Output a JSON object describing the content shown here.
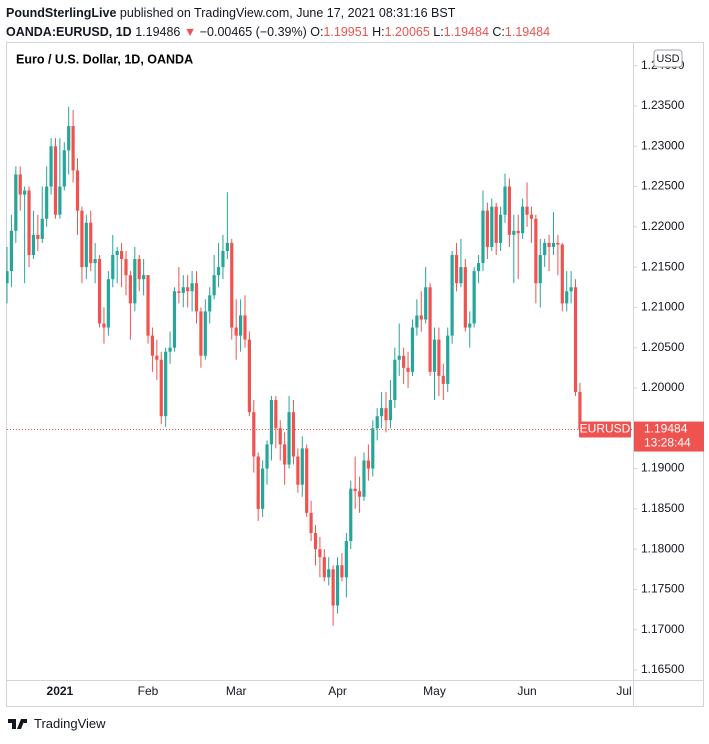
{
  "header": {
    "publisher": "PoundSterlingLive",
    "published": "published on TradingView.com, June 17, 2021 08:31:16 BST",
    "symbol": "OANDA:EURUSD, 1D",
    "last": "1.19486",
    "arrow": "▼",
    "change": "−0.00465 (−0.39%)",
    "ohlc": [
      {
        "key": "O:",
        "value": "1.19951"
      },
      {
        "key": "H:",
        "value": "1.20065"
      },
      {
        "key": "L:",
        "value": "1.19484"
      },
      {
        "key": "C:",
        "value": "1.19484"
      }
    ]
  },
  "footer": {
    "brand": "TradingView"
  },
  "chart_data": {
    "type": "candlestick",
    "legend": "Euro / U.S. Dollar, 1D, OANDA",
    "currency": "USD",
    "up_color": "#26a69a",
    "down_color": "#ef5350",
    "last_price": 1.19484,
    "last_symbol": "EURUSD",
    "countdown": "13:28:44",
    "ylim": [
      1.16376,
      1.24219
    ],
    "yticks": [
      {
        "value": 1.165,
        "label": "1.16500"
      },
      {
        "value": 1.17,
        "label": "1.17000"
      },
      {
        "value": 1.175,
        "label": "1.17500"
      },
      {
        "value": 1.18,
        "label": "1.18000"
      },
      {
        "value": 1.185,
        "label": "1.18500"
      },
      {
        "value": 1.19,
        "label": "1.19000"
      },
      {
        "value": 1.195,
        "label": "1.19500"
      },
      {
        "value": 1.2,
        "label": "1.20000"
      },
      {
        "value": 1.205,
        "label": "1.20500"
      },
      {
        "value": 1.21,
        "label": "1.21000"
      },
      {
        "value": 1.215,
        "label": "1.21500"
      },
      {
        "value": 1.22,
        "label": "1.22000"
      },
      {
        "value": 1.225,
        "label": "1.22500"
      },
      {
        "value": 1.23,
        "label": "1.23000"
      },
      {
        "value": 1.235,
        "label": "1.23500"
      },
      {
        "value": 1.24,
        "label": "1.24000"
      }
    ],
    "categories": [
      null,
      null,
      null,
      null,
      null,
      null,
      null,
      null,
      null,
      null,
      null,
      null,
      "2021",
      null,
      null,
      null,
      null,
      null,
      null,
      null,
      null,
      null,
      null,
      null,
      null,
      null,
      null,
      null,
      null,
      null,
      null,
      null,
      "Feb",
      null,
      null,
      null,
      null,
      null,
      null,
      null,
      null,
      null,
      null,
      null,
      null,
      null,
      null,
      null,
      null,
      null,
      null,
      null,
      "Mar",
      null,
      null,
      null,
      null,
      null,
      null,
      null,
      null,
      null,
      null,
      null,
      null,
      null,
      null,
      null,
      null,
      null,
      null,
      null,
      null,
      null,
      null,
      "Apr",
      null,
      null,
      null,
      null,
      null,
      null,
      null,
      null,
      null,
      null,
      null,
      null,
      null,
      null,
      null,
      null,
      null,
      null,
      null,
      null,
      null,
      "May",
      null,
      null,
      null,
      null,
      null,
      null,
      null,
      null,
      null,
      null,
      null,
      null,
      null,
      null,
      null,
      null,
      null,
      null,
      null,
      null,
      "Jun",
      null,
      null,
      null,
      null,
      null,
      null,
      null,
      null,
      null,
      null,
      null,
      null,
      null,
      null,
      null,
      null,
      null,
      null,
      null,
      null,
      null,
      "Jul"
    ],
    "values": [
      [
        1.213,
        1.2175,
        1.2105,
        1.2145
      ],
      [
        1.2145,
        1.2215,
        1.2125,
        1.2195
      ],
      [
        1.2195,
        1.2275,
        1.218,
        1.2265
      ],
      [
        1.2265,
        1.2275,
        1.222,
        1.224
      ],
      [
        1.224,
        1.225,
        1.213,
        1.2245
      ],
      [
        1.2245,
        1.225,
        1.215,
        1.2165
      ],
      [
        1.2165,
        1.222,
        1.216,
        1.219
      ],
      [
        1.219,
        1.2215,
        1.217,
        1.2185
      ],
      [
        1.2185,
        1.225,
        1.218,
        1.221
      ],
      [
        1.221,
        1.2275,
        1.22,
        1.225
      ],
      [
        1.225,
        1.231,
        1.224,
        1.23
      ],
      [
        1.23,
        1.231,
        1.221,
        1.2215
      ],
      [
        1.2215,
        1.231,
        1.221,
        1.225
      ],
      [
        1.225,
        1.2305,
        1.2245,
        1.2295
      ],
      [
        1.2295,
        1.2349,
        1.2265,
        1.2325
      ],
      [
        1.2325,
        1.2345,
        1.2255,
        1.227
      ],
      [
        1.227,
        1.2285,
        1.219,
        1.222
      ],
      [
        1.222,
        1.2225,
        1.213,
        1.215
      ],
      [
        1.215,
        1.2215,
        1.2135,
        1.2205
      ],
      [
        1.2205,
        1.222,
        1.2145,
        1.2155
      ],
      [
        1.2155,
        1.218,
        1.213,
        1.216
      ],
      [
        1.216,
        1.2165,
        1.2075,
        1.208
      ],
      [
        1.208,
        1.21,
        1.2055,
        1.2075
      ],
      [
        1.2075,
        1.2145,
        1.2065,
        1.2135
      ],
      [
        1.2135,
        1.219,
        1.2125,
        1.2165
      ],
      [
        1.2165,
        1.2175,
        1.213,
        1.217
      ],
      [
        1.217,
        1.218,
        1.2125,
        1.216
      ],
      [
        1.216,
        1.217,
        1.2115,
        1.214
      ],
      [
        1.214,
        1.2145,
        1.206,
        1.2105
      ],
      [
        1.2105,
        1.2175,
        1.2095,
        1.216
      ],
      [
        1.216,
        1.2165,
        1.212,
        1.2135
      ],
      [
        1.2135,
        1.216,
        1.2115,
        1.214
      ],
      [
        1.214,
        1.214,
        1.2055,
        1.2065
      ],
      [
        1.2065,
        1.2075,
        1.202,
        1.204
      ],
      [
        1.204,
        1.206,
        1.201,
        1.2035
      ],
      [
        1.2035,
        1.2045,
        1.1955,
        1.1965
      ],
      [
        1.1965,
        1.205,
        1.1952,
        1.2045
      ],
      [
        1.2045,
        1.207,
        1.203,
        1.205
      ],
      [
        1.205,
        1.2125,
        1.2045,
        1.212
      ],
      [
        1.212,
        1.215,
        1.2105,
        1.2118
      ],
      [
        1.2118,
        1.214,
        1.21,
        1.2125
      ],
      [
        1.2125,
        1.214,
        1.21,
        1.212
      ],
      [
        1.212,
        1.2145,
        1.2095,
        1.213
      ],
      [
        1.213,
        1.2145,
        1.208,
        1.2095
      ],
      [
        1.2095,
        1.21,
        1.2025,
        1.204
      ],
      [
        1.204,
        1.211,
        1.2035,
        1.2095
      ],
      [
        1.2095,
        1.2125,
        1.208,
        1.2115
      ],
      [
        1.2115,
        1.2165,
        1.211,
        1.214
      ],
      [
        1.214,
        1.218,
        1.2125,
        1.215
      ],
      [
        1.215,
        1.219,
        1.2135,
        1.217
      ],
      [
        1.217,
        1.2243,
        1.216,
        1.218
      ],
      [
        1.218,
        1.2185,
        1.206,
        1.2075
      ],
      [
        1.2075,
        1.211,
        1.2035,
        1.2065
      ],
      [
        1.2065,
        1.211,
        1.2045,
        1.209
      ],
      [
        1.209,
        1.2115,
        1.205,
        1.206
      ],
      [
        1.206,
        1.207,
        1.1965,
        1.197
      ],
      [
        1.197,
        1.1985,
        1.1895,
        1.1915
      ],
      [
        1.1915,
        1.192,
        1.1835,
        1.185
      ],
      [
        1.185,
        1.191,
        1.184,
        1.19
      ],
      [
        1.19,
        1.1935,
        1.188,
        1.193
      ],
      [
        1.193,
        1.199,
        1.191,
        1.1985
      ],
      [
        1.1985,
        1.199,
        1.1925,
        1.195
      ],
      [
        1.195,
        1.196,
        1.191,
        1.193
      ],
      [
        1.193,
        1.1945,
        1.188,
        1.1905
      ],
      [
        1.1905,
        1.199,
        1.19,
        1.197
      ],
      [
        1.197,
        1.1985,
        1.1905,
        1.1915
      ],
      [
        1.1915,
        1.1925,
        1.187,
        1.188
      ],
      [
        1.188,
        1.194,
        1.1865,
        1.1925
      ],
      [
        1.1925,
        1.193,
        1.184,
        1.1845
      ],
      [
        1.1845,
        1.186,
        1.181,
        1.182
      ],
      [
        1.182,
        1.183,
        1.178,
        1.18
      ],
      [
        1.18,
        1.1815,
        1.1765,
        1.179
      ],
      [
        1.179,
        1.18,
        1.176,
        1.1765
      ],
      [
        1.1765,
        1.179,
        1.1755,
        1.1775
      ],
      [
        1.1775,
        1.178,
        1.1705,
        1.173
      ],
      [
        1.173,
        1.179,
        1.172,
        1.178
      ],
      [
        1.178,
        1.1795,
        1.176,
        1.1765
      ],
      [
        1.1765,
        1.182,
        1.174,
        1.181
      ],
      [
        1.181,
        1.1885,
        1.18,
        1.1875
      ],
      [
        1.1875,
        1.1915,
        1.185,
        1.1872
      ],
      [
        1.1872,
        1.189,
        1.1845,
        1.1865
      ],
      [
        1.1865,
        1.192,
        1.186,
        1.191
      ],
      [
        1.191,
        1.193,
        1.1885,
        1.19
      ],
      [
        1.19,
        1.196,
        1.189,
        1.195
      ],
      [
        1.195,
        1.1975,
        1.1935,
        1.1965
      ],
      [
        1.1965,
        1.1995,
        1.195,
        1.1975
      ],
      [
        1.1975,
        1.1995,
        1.1945,
        1.196
      ],
      [
        1.196,
        1.201,
        1.195,
        1.1985
      ],
      [
        1.1985,
        1.205,
        1.1975,
        1.2035
      ],
      [
        1.2035,
        1.208,
        1.2015,
        1.204
      ],
      [
        1.204,
        1.205,
        1.2005,
        1.2025
      ],
      [
        1.2025,
        1.2045,
        1.2,
        1.202
      ],
      [
        1.202,
        1.2085,
        1.2015,
        1.2075
      ],
      [
        1.2075,
        1.211,
        1.2065,
        1.209
      ],
      [
        1.209,
        1.212,
        1.207,
        1.2085
      ],
      [
        1.2085,
        1.215,
        1.208,
        1.2125
      ],
      [
        1.2125,
        1.213,
        1.2015,
        1.202
      ],
      [
        1.202,
        1.2075,
        1.1985,
        1.206
      ],
      [
        1.206,
        1.2075,
        1.199,
        1.2015
      ],
      [
        1.2015,
        1.203,
        1.1985,
        1.2005
      ],
      [
        1.2005,
        1.2075,
        1.1995,
        1.2065
      ],
      [
        1.2065,
        1.217,
        1.2055,
        1.2165
      ],
      [
        1.2165,
        1.218,
        1.212,
        1.213
      ],
      [
        1.213,
        1.2185,
        1.2125,
        1.215
      ],
      [
        1.215,
        1.216,
        1.207,
        1.2075
      ],
      [
        1.2075,
        1.2095,
        1.205,
        1.208
      ],
      [
        1.208,
        1.215,
        1.2075,
        1.2145
      ],
      [
        1.2145,
        1.2165,
        1.213,
        1.2155
      ],
      [
        1.2155,
        1.2245,
        1.2145,
        1.222
      ],
      [
        1.222,
        1.223,
        1.216,
        1.2175
      ],
      [
        1.2175,
        1.2235,
        1.217,
        1.2225
      ],
      [
        1.2225,
        1.223,
        1.2165,
        1.218
      ],
      [
        1.218,
        1.2225,
        1.217,
        1.2215
      ],
      [
        1.2215,
        1.2266,
        1.2205,
        1.225
      ],
      [
        1.225,
        1.226,
        1.2175,
        1.219
      ],
      [
        1.219,
        1.2215,
        1.213,
        1.2195
      ],
      [
        1.2195,
        1.2215,
        1.2135,
        1.2192
      ],
      [
        1.2192,
        1.2235,
        1.2185,
        1.2225
      ],
      [
        1.2225,
        1.2255,
        1.22,
        1.2215
      ],
      [
        1.2215,
        1.2225,
        1.218,
        1.221
      ],
      [
        1.221,
        1.2215,
        1.2105,
        1.213
      ],
      [
        1.213,
        1.2185,
        1.21,
        1.2165
      ],
      [
        1.2165,
        1.2185,
        1.215,
        1.218
      ],
      [
        1.218,
        1.219,
        1.2145,
        1.2175
      ],
      [
        1.2175,
        1.2218,
        1.2165,
        1.218
      ],
      [
        1.218,
        1.219,
        1.214,
        1.2178
      ],
      [
        1.2178,
        1.218,
        1.2095,
        1.2105
      ],
      [
        1.2105,
        1.2145,
        1.2095,
        1.212
      ],
      [
        1.212,
        1.2145,
        1.2105,
        1.2125
      ],
      [
        1.2125,
        1.2135,
        1.199,
        1.1995
      ],
      [
        1.19951,
        1.20065,
        1.19484,
        1.19484
      ],
      null,
      null,
      null,
      null,
      null,
      null,
      null,
      null,
      null,
      null
    ]
  }
}
